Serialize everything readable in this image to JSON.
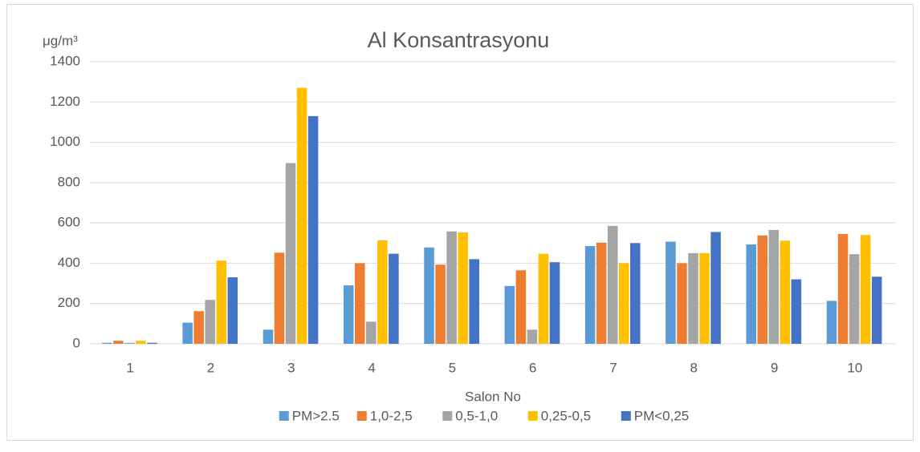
{
  "chart_data": {
    "type": "bar",
    "title": "Al Konsantrasyonu",
    "y_unit": "μg/m³",
    "x_label": "Salon No",
    "categories": [
      "1",
      "2",
      "3",
      "4",
      "5",
      "6",
      "7",
      "8",
      "9",
      "10"
    ],
    "series": [
      {
        "name": "PM>2.5",
        "color": "#5b9bd5",
        "values": [
          5,
          105,
          70,
          290,
          478,
          287,
          485,
          507,
          493,
          213
        ]
      },
      {
        "name": "1,0-2,5",
        "color": "#ed7d31",
        "values": [
          15,
          162,
          452,
          400,
          393,
          365,
          502,
          400,
          538,
          545
        ]
      },
      {
        "name": "0,5-1,0",
        "color": "#a5a5a5",
        "values": [
          5,
          218,
          897,
          110,
          558,
          70,
          585,
          450,
          565,
          445
        ]
      },
      {
        "name": "0,25-0,5",
        "color": "#ffc000",
        "values": [
          15,
          413,
          1270,
          513,
          553,
          447,
          400,
          450,
          512,
          540
        ]
      },
      {
        "name": "PM<0,25",
        "color": "#4472c4",
        "values": [
          5,
          330,
          1130,
          447,
          420,
          405,
          500,
          555,
          320,
          333
        ]
      }
    ],
    "ylim": [
      0,
      1400
    ],
    "yticks": [
      0,
      200,
      400,
      600,
      800,
      1000,
      1200,
      1400
    ],
    "grid": true,
    "legend": "bottom"
  }
}
